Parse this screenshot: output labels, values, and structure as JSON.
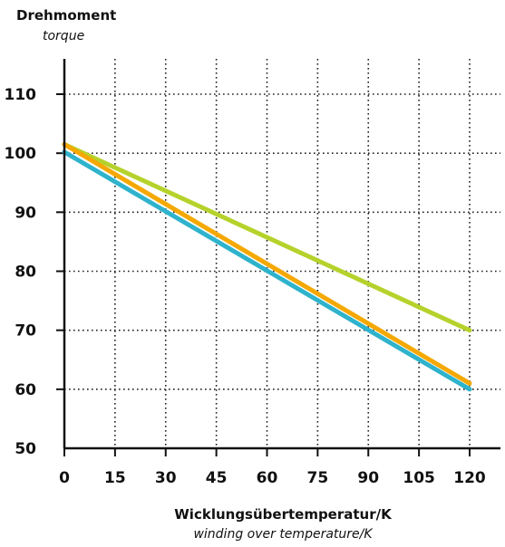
{
  "chart_data": {
    "type": "line",
    "ylabel": "Drehmoment",
    "ylabel_sub": "torque",
    "xlabel": "Wicklungsübertemperatur/K",
    "xlabel_sub": "winding over temperature/K",
    "xlim": [
      0,
      120
    ],
    "ylim": [
      50,
      115
    ],
    "xticks": [
      0,
      15,
      30,
      45,
      60,
      75,
      90,
      105,
      120
    ],
    "yticks": [
      50,
      60,
      70,
      80,
      90,
      100,
      110
    ],
    "grid": true,
    "legend": "none",
    "series": [
      {
        "color": "#b5d22b",
        "x": [
          0,
          120
        ],
        "y": [
          101.5,
          70
        ]
      },
      {
        "color": "#f5a800",
        "x": [
          0,
          120
        ],
        "y": [
          101.5,
          61
        ]
      },
      {
        "color": "#2fb3cc",
        "x": [
          0,
          120
        ],
        "y": [
          100.2,
          60
        ]
      }
    ]
  }
}
